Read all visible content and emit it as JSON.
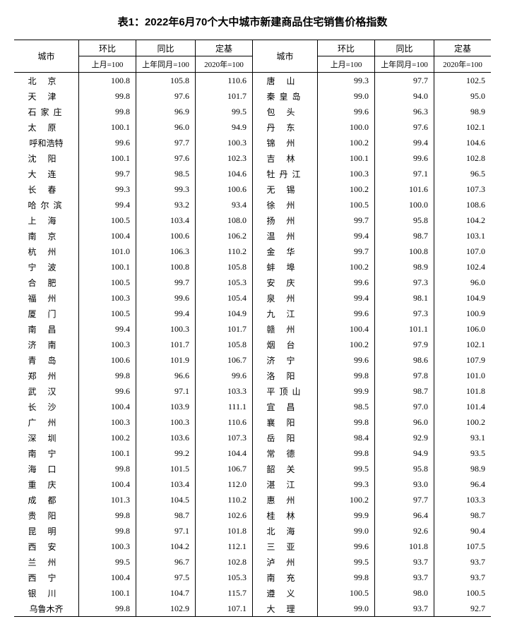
{
  "title": "表1：2022年6月70个大中城市新建商品住宅销售价格指数",
  "headers": {
    "city": "城市",
    "mom": "环比",
    "yoy": "同比",
    "base": "定基",
    "mom_sub": "上月=100",
    "yoy_sub": "上年同月=100",
    "base_sub": "2020年=100"
  },
  "rows": [
    {
      "l": {
        "c": "北京",
        "n": 2,
        "m": "100.8",
        "y": "105.8",
        "b": "110.6"
      },
      "r": {
        "c": "唐山",
        "n": 2,
        "m": "99.3",
        "y": "97.7",
        "b": "102.5"
      }
    },
    {
      "l": {
        "c": "天津",
        "n": 2,
        "m": "99.8",
        "y": "97.6",
        "b": "101.7"
      },
      "r": {
        "c": "秦皇岛",
        "n": 3,
        "m": "99.0",
        "y": "94.0",
        "b": "95.0"
      }
    },
    {
      "l": {
        "c": "石家庄",
        "n": 3,
        "m": "99.8",
        "y": "96.9",
        "b": "99.5"
      },
      "r": {
        "c": "包头",
        "n": 2,
        "m": "99.6",
        "y": "96.3",
        "b": "98.9"
      }
    },
    {
      "l": {
        "c": "太原",
        "n": 2,
        "m": "100.1",
        "y": "96.0",
        "b": "94.9"
      },
      "r": {
        "c": "丹东",
        "n": 2,
        "m": "100.0",
        "y": "97.6",
        "b": "102.1"
      }
    },
    {
      "l": {
        "c": "呼和浩特",
        "n": 4,
        "m": "99.6",
        "y": "97.7",
        "b": "100.3"
      },
      "r": {
        "c": "锦州",
        "n": 2,
        "m": "100.2",
        "y": "99.4",
        "b": "104.6"
      }
    },
    {
      "l": {
        "c": "沈阳",
        "n": 2,
        "m": "100.1",
        "y": "97.6",
        "b": "102.3"
      },
      "r": {
        "c": "吉林",
        "n": 2,
        "m": "100.1",
        "y": "99.6",
        "b": "102.8"
      }
    },
    {
      "l": {
        "c": "大连",
        "n": 2,
        "m": "99.7",
        "y": "98.5",
        "b": "104.6"
      },
      "r": {
        "c": "牡丹江",
        "n": 3,
        "m": "100.3",
        "y": "97.1",
        "b": "96.5"
      }
    },
    {
      "l": {
        "c": "长春",
        "n": 2,
        "m": "99.3",
        "y": "99.3",
        "b": "100.6"
      },
      "r": {
        "c": "无锡",
        "n": 2,
        "m": "100.2",
        "y": "101.6",
        "b": "107.3"
      }
    },
    {
      "l": {
        "c": "哈尔滨",
        "n": 3,
        "m": "99.4",
        "y": "93.2",
        "b": "93.4"
      },
      "r": {
        "c": "徐州",
        "n": 2,
        "m": "100.5",
        "y": "100.0",
        "b": "108.6"
      }
    },
    {
      "l": {
        "c": "上海",
        "n": 2,
        "m": "100.5",
        "y": "103.4",
        "b": "108.0"
      },
      "r": {
        "c": "扬州",
        "n": 2,
        "m": "99.7",
        "y": "95.8",
        "b": "104.2"
      }
    },
    {
      "l": {
        "c": "南京",
        "n": 2,
        "m": "100.4",
        "y": "100.6",
        "b": "106.2"
      },
      "r": {
        "c": "温州",
        "n": 2,
        "m": "99.4",
        "y": "98.7",
        "b": "103.1"
      }
    },
    {
      "l": {
        "c": "杭州",
        "n": 2,
        "m": "101.0",
        "y": "106.3",
        "b": "110.2"
      },
      "r": {
        "c": "金华",
        "n": 2,
        "m": "99.7",
        "y": "100.8",
        "b": "107.0"
      }
    },
    {
      "l": {
        "c": "宁波",
        "n": 2,
        "m": "100.1",
        "y": "100.8",
        "b": "105.8"
      },
      "r": {
        "c": "蚌埠",
        "n": 2,
        "m": "100.2",
        "y": "98.9",
        "b": "102.4"
      }
    },
    {
      "l": {
        "c": "合肥",
        "n": 2,
        "m": "100.5",
        "y": "99.7",
        "b": "105.3"
      },
      "r": {
        "c": "安庆",
        "n": 2,
        "m": "99.6",
        "y": "97.3",
        "b": "96.0"
      }
    },
    {
      "l": {
        "c": "福州",
        "n": 2,
        "m": "100.3",
        "y": "99.6",
        "b": "105.4"
      },
      "r": {
        "c": "泉州",
        "n": 2,
        "m": "99.4",
        "y": "98.1",
        "b": "104.9"
      }
    },
    {
      "l": {
        "c": "厦门",
        "n": 2,
        "m": "100.5",
        "y": "99.4",
        "b": "104.9"
      },
      "r": {
        "c": "九江",
        "n": 2,
        "m": "99.6",
        "y": "97.3",
        "b": "100.9"
      }
    },
    {
      "l": {
        "c": "南昌",
        "n": 2,
        "m": "99.4",
        "y": "100.3",
        "b": "101.7"
      },
      "r": {
        "c": "赣州",
        "n": 2,
        "m": "100.4",
        "y": "101.1",
        "b": "106.0"
      }
    },
    {
      "l": {
        "c": "济南",
        "n": 2,
        "m": "100.3",
        "y": "101.7",
        "b": "105.8"
      },
      "r": {
        "c": "烟台",
        "n": 2,
        "m": "100.2",
        "y": "97.9",
        "b": "102.1"
      }
    },
    {
      "l": {
        "c": "青岛",
        "n": 2,
        "m": "100.6",
        "y": "101.9",
        "b": "106.7"
      },
      "r": {
        "c": "济宁",
        "n": 2,
        "m": "99.6",
        "y": "98.6",
        "b": "107.9"
      }
    },
    {
      "l": {
        "c": "郑州",
        "n": 2,
        "m": "99.8",
        "y": "96.6",
        "b": "99.6"
      },
      "r": {
        "c": "洛阳",
        "n": 2,
        "m": "99.8",
        "y": "97.8",
        "b": "101.0"
      }
    },
    {
      "l": {
        "c": "武汉",
        "n": 2,
        "m": "99.6",
        "y": "97.1",
        "b": "103.3"
      },
      "r": {
        "c": "平顶山",
        "n": 3,
        "m": "99.9",
        "y": "98.7",
        "b": "101.8"
      }
    },
    {
      "l": {
        "c": "长沙",
        "n": 2,
        "m": "100.4",
        "y": "103.9",
        "b": "111.1"
      },
      "r": {
        "c": "宜昌",
        "n": 2,
        "m": "98.5",
        "y": "97.0",
        "b": "101.4"
      }
    },
    {
      "l": {
        "c": "广州",
        "n": 2,
        "m": "100.3",
        "y": "100.3",
        "b": "110.6"
      },
      "r": {
        "c": "襄阳",
        "n": 2,
        "m": "99.8",
        "y": "96.0",
        "b": "100.2"
      }
    },
    {
      "l": {
        "c": "深圳",
        "n": 2,
        "m": "100.2",
        "y": "103.6",
        "b": "107.3"
      },
      "r": {
        "c": "岳阳",
        "n": 2,
        "m": "98.4",
        "y": "92.9",
        "b": "93.1"
      }
    },
    {
      "l": {
        "c": "南宁",
        "n": 2,
        "m": "100.1",
        "y": "99.2",
        "b": "104.4"
      },
      "r": {
        "c": "常德",
        "n": 2,
        "m": "99.8",
        "y": "94.9",
        "b": "93.5"
      }
    },
    {
      "l": {
        "c": "海口",
        "n": 2,
        "m": "99.8",
        "y": "101.5",
        "b": "106.7"
      },
      "r": {
        "c": "韶关",
        "n": 2,
        "m": "99.5",
        "y": "95.8",
        "b": "98.9"
      }
    },
    {
      "l": {
        "c": "重庆",
        "n": 2,
        "m": "100.4",
        "y": "103.4",
        "b": "112.0"
      },
      "r": {
        "c": "湛江",
        "n": 2,
        "m": "99.3",
        "y": "93.0",
        "b": "96.4"
      }
    },
    {
      "l": {
        "c": "成都",
        "n": 2,
        "m": "101.3",
        "y": "104.5",
        "b": "110.2"
      },
      "r": {
        "c": "惠州",
        "n": 2,
        "m": "100.2",
        "y": "97.7",
        "b": "103.3"
      }
    },
    {
      "l": {
        "c": "贵阳",
        "n": 2,
        "m": "99.8",
        "y": "98.7",
        "b": "102.6"
      },
      "r": {
        "c": "桂林",
        "n": 2,
        "m": "99.9",
        "y": "96.4",
        "b": "98.7"
      }
    },
    {
      "l": {
        "c": "昆明",
        "n": 2,
        "m": "99.8",
        "y": "97.1",
        "b": "101.8"
      },
      "r": {
        "c": "北海",
        "n": 2,
        "m": "99.0",
        "y": "92.6",
        "b": "90.4"
      }
    },
    {
      "l": {
        "c": "西安",
        "n": 2,
        "m": "100.3",
        "y": "104.2",
        "b": "112.1"
      },
      "r": {
        "c": "三亚",
        "n": 2,
        "m": "99.6",
        "y": "101.8",
        "b": "107.5"
      }
    },
    {
      "l": {
        "c": "兰州",
        "n": 2,
        "m": "99.5",
        "y": "96.7",
        "b": "102.8"
      },
      "r": {
        "c": "泸州",
        "n": 2,
        "m": "99.5",
        "y": "93.7",
        "b": "93.7"
      }
    },
    {
      "l": {
        "c": "西宁",
        "n": 2,
        "m": "100.4",
        "y": "97.5",
        "b": "105.3"
      },
      "r": {
        "c": "南充",
        "n": 2,
        "m": "99.8",
        "y": "93.7",
        "b": "93.7"
      }
    },
    {
      "l": {
        "c": "银川",
        "n": 2,
        "m": "100.1",
        "y": "104.7",
        "b": "115.7"
      },
      "r": {
        "c": "遵义",
        "n": 2,
        "m": "100.5",
        "y": "98.0",
        "b": "100.5"
      }
    },
    {
      "l": {
        "c": "乌鲁木齐",
        "n": 4,
        "m": "99.8",
        "y": "102.9",
        "b": "107.1"
      },
      "r": {
        "c": "大理",
        "n": 2,
        "m": "99.0",
        "y": "93.7",
        "b": "92.7"
      }
    }
  ]
}
